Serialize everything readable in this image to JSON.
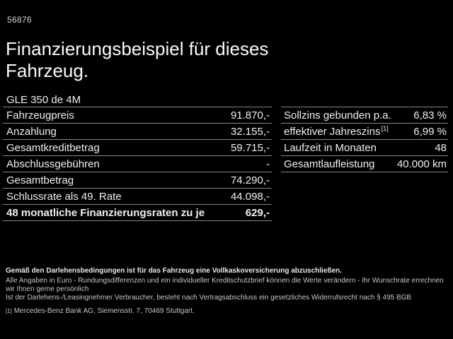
{
  "page": {
    "ref_number": "56876",
    "title_line1": "Finanzierungsbeispiel für dieses",
    "title_line2": "Fahrzeug.",
    "model": "GLE 350 de 4M"
  },
  "finance_table": {
    "rows": [
      {
        "label": "Fahrzeugpreis",
        "value": "91.870,-"
      },
      {
        "label": "Anzahlung",
        "value": "32.155,-"
      },
      {
        "label": "Gesamtkreditbetrag",
        "value": "59.715,-"
      },
      {
        "label": "Abschlussgebühren",
        "value": "-"
      },
      {
        "label": "Gesamtbetrag",
        "value": "74.290,-"
      },
      {
        "label": "Schlussrate als 49. Rate",
        "value": "44.098,-"
      },
      {
        "label": "48 monatliche Finanzierungsraten zu je",
        "value": "629,-"
      }
    ]
  },
  "conditions_table": {
    "rows": [
      {
        "label": "Sollzins gebunden p.a.",
        "value": "6,83 %"
      },
      {
        "label": "effektiver Jahreszins",
        "sup": "[1]",
        "value": "6,99 %"
      },
      {
        "label": "Laufzeit in Monaten",
        "value": "48"
      },
      {
        "label": "Gesamtlaufleistung",
        "value": "40.000 km"
      }
    ]
  },
  "footnotes": {
    "insurance": "Gemäß den Darlehensbedingungen ist für das Fahrzeug eine Vollkaskoversicherung abzuschließen.",
    "disclaimer1": "Alle Angaben in Euro - Rundungsdifferenzen und ein individueller Kreditschutzbrief können die Werte verändern - Ihr Wunschrate errechnen wir Ihnen gerne persönlich",
    "disclaimer2": "Ist der Darlehens-/Leasingnehmer Verbraucher, besteht nach Vertragsabschluss ein gesetzliches Widerrufsrecht nach § 495 BGB",
    "bank_marker": "[1]",
    "bank": "Mercedes-Benz Bank AG, Siemensstr. 7, 70469 Stuttgart."
  },
  "colors": {
    "background": "#000000",
    "text": "#f0f0f0",
    "divider": "#878787"
  }
}
